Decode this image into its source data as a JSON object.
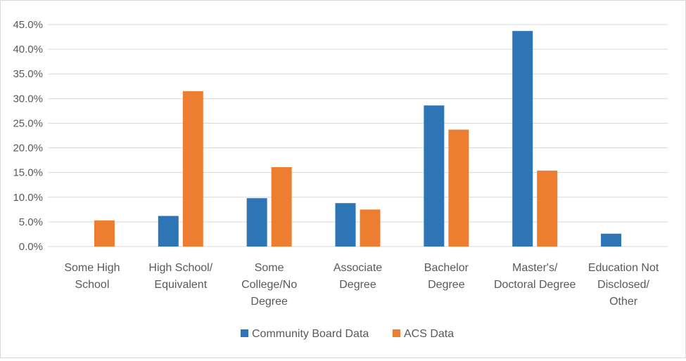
{
  "chart_data": {
    "type": "bar",
    "categories": [
      [
        "Some High",
        "School"
      ],
      [
        "High School/",
        "Equivalent"
      ],
      [
        "Some",
        "College/No",
        "Degree"
      ],
      [
        "Associate",
        "Degree"
      ],
      [
        "Bachelor",
        "Degree"
      ],
      [
        "Master's/",
        "Doctoral Degree"
      ],
      [
        "Education Not",
        "Disclosed/",
        "Other"
      ]
    ],
    "series": [
      {
        "name": "Community Board Data",
        "color": "#2E75B6",
        "values": [
          null,
          6.2,
          9.8,
          8.8,
          28.6,
          43.7,
          2.6
        ]
      },
      {
        "name": "ACS Data",
        "color": "#ED7D31",
        "values": [
          5.3,
          31.5,
          16.1,
          7.5,
          23.7,
          15.4,
          null
        ]
      }
    ],
    "y_ticks": [
      "0.0%",
      "5.0%",
      "10.0%",
      "15.0%",
      "20.0%",
      "25.0%",
      "30.0%",
      "35.0%",
      "40.0%",
      "45.0%"
    ],
    "ylim": [
      0,
      45
    ],
    "grid": true,
    "gridline_color": "#d9d9d9",
    "legend_position": "bottom"
  }
}
